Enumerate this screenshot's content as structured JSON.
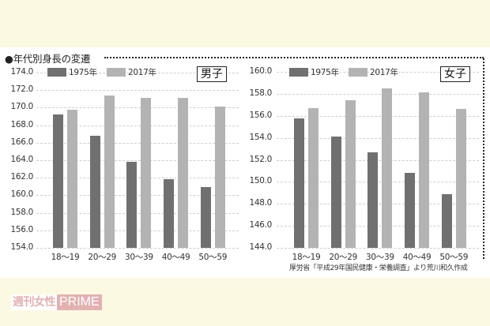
{
  "title": "●年代別身長の変遷",
  "legend": {
    "series1": "1975年",
    "series2": "2017年"
  },
  "colors": {
    "series1": "#707070",
    "series2": "#b3b3b3",
    "brand": "#e3b1b1",
    "background": "#fbf9e2"
  },
  "source": "厚労省「平成29年国民健康・栄養調査」より荒川和久作成",
  "logo": {
    "jp": "週刊女性",
    "en": "PRIME"
  },
  "chart_data": [
    {
      "type": "bar",
      "title": "男子",
      "categories": [
        "18〜19",
        "20〜29",
        "30〜39",
        "40〜49",
        "50〜59"
      ],
      "series": [
        {
          "name": "1975年",
          "values": [
            169.2,
            166.8,
            163.8,
            161.8,
            160.9
          ]
        },
        {
          "name": "2017年",
          "values": [
            169.8,
            171.4,
            171.1,
            171.1,
            170.1
          ]
        }
      ],
      "yticks": [
        "174.0",
        "172.0",
        "170.0",
        "168.0",
        "166.0",
        "164.0",
        "162.0",
        "160.0",
        "158.0",
        "156.0",
        "154.0"
      ],
      "ylim": [
        154,
        174
      ],
      "xlabel": "",
      "ylabel": "",
      "grid": true,
      "legend_position": "top"
    },
    {
      "type": "bar",
      "title": "女子",
      "categories": [
        "18〜19",
        "20〜29",
        "30〜39",
        "40〜49",
        "50〜59"
      ],
      "series": [
        {
          "name": "1975年",
          "values": [
            155.8,
            154.1,
            152.7,
            150.8,
            148.9
          ]
        },
        {
          "name": "2017年",
          "values": [
            156.7,
            157.4,
            158.5,
            158.1,
            156.6
          ]
        }
      ],
      "yticks": [
        "160.0",
        "158.0",
        "156.0",
        "154.0",
        "152.0",
        "150.0",
        "148.0",
        "146.0",
        "144.0"
      ],
      "ylim": [
        144,
        160
      ],
      "xlabel": "",
      "ylabel": "",
      "grid": true,
      "legend_position": "top"
    }
  ]
}
